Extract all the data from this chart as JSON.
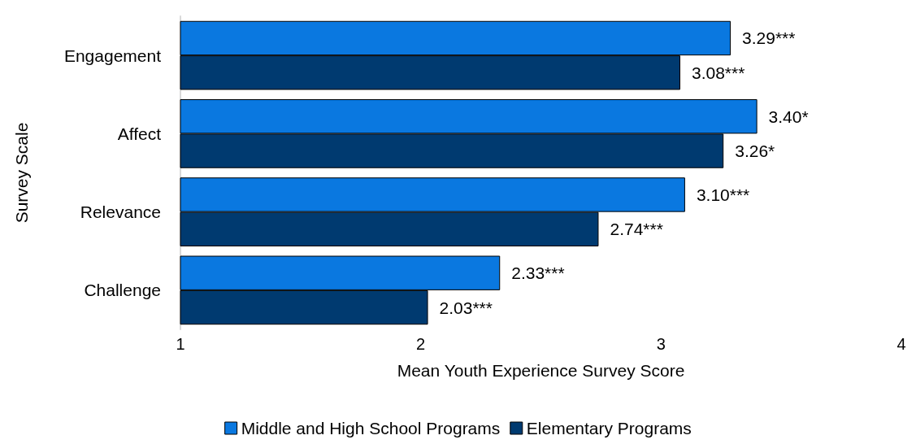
{
  "chart_data": {
    "type": "bar",
    "orientation": "horizontal",
    "xlabel": "Mean Youth Experience Survey Score",
    "ylabel": "Survey Scale",
    "categories": [
      "Engagement",
      "Affect",
      "Relevance",
      "Challenge"
    ],
    "series": [
      {
        "name": "Middle and High School Programs",
        "color": "#0a78e0",
        "values": [
          3.29,
          3.4,
          3.1,
          2.33
        ],
        "value_labels": [
          "3.29***",
          "3.40*",
          "3.10***",
          "2.33***"
        ]
      },
      {
        "name": "Elementary Programs",
        "color": "#003a70",
        "values": [
          3.08,
          3.26,
          2.74,
          2.03
        ],
        "value_labels": [
          "3.08***",
          "3.26*",
          "2.74***",
          "2.03***"
        ]
      }
    ],
    "xlim": [
      1,
      4
    ],
    "xticks": [
      1,
      2,
      3,
      4
    ],
    "grid": false,
    "legend": "bottom"
  }
}
